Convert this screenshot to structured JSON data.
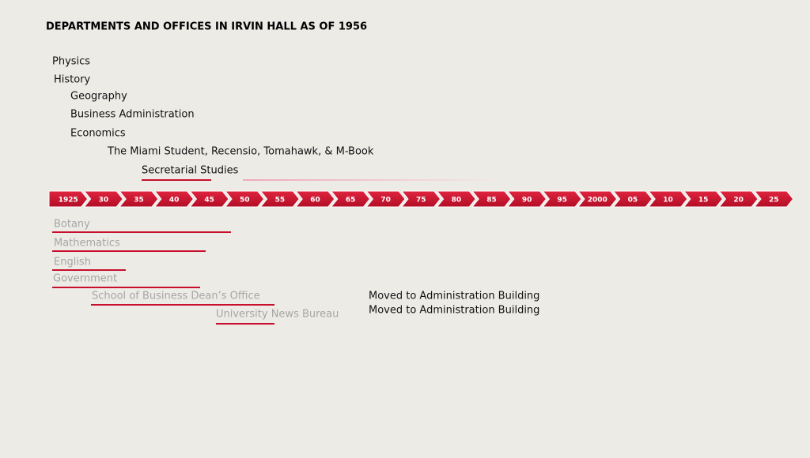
{
  "title": "DEPARTMENTS AND OFFICES IN IRVIN HALL AS OF 1956",
  "timeline": [
    "1925",
    "30",
    "35",
    "40",
    "45",
    "50",
    "55",
    "60",
    "65",
    "70",
    "75",
    "80",
    "85",
    "90",
    "95",
    "2000",
    "05",
    "10",
    "15",
    "20",
    "25"
  ],
  "current": [
    "Physics",
    "History",
    "Geography",
    "Business Administration",
    "Economics",
    "The Miami Student, Recensio, Tomahawk, & M-Book",
    "Secretarial Studies"
  ],
  "former": [
    "Botany",
    "Mathematics",
    "English",
    "Government",
    "School of Business Dean’s Office",
    "University News Bureau"
  ],
  "notes": [
    "Moved to Administration Building",
    "Moved to Administration Building"
  ]
}
